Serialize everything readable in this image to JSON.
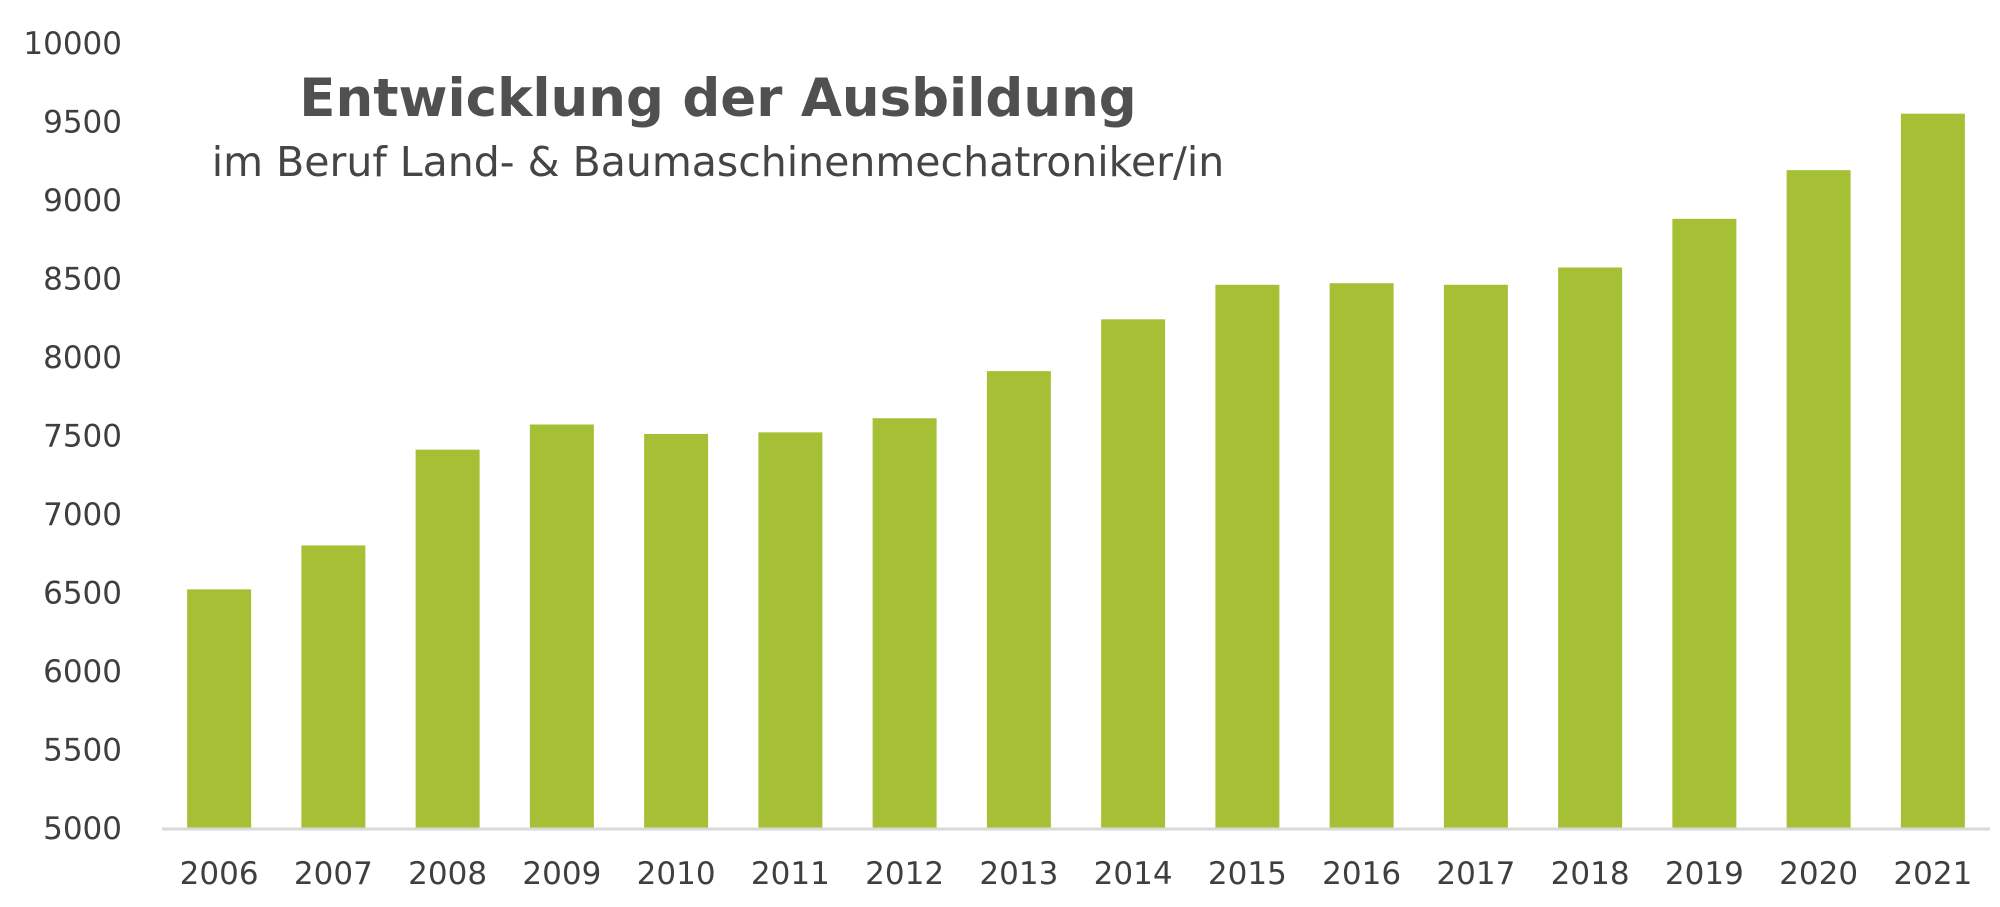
{
  "chart_data": {
    "type": "bar",
    "title": "Entwicklung der Ausbildung",
    "subtitle": "im Beruf Land- & Baumaschinenmechatroniker/in",
    "xlabel": "",
    "ylabel": "",
    "categories": [
      "2006",
      "2007",
      "2008",
      "2009",
      "2010",
      "2011",
      "2012",
      "2013",
      "2014",
      "2015",
      "2016",
      "2017",
      "2018",
      "2019",
      "2020",
      "2021"
    ],
    "values": [
      6520,
      6800,
      7410,
      7570,
      7510,
      7520,
      7610,
      7910,
      8240,
      8460,
      8470,
      8460,
      8570,
      8880,
      9190,
      9550
    ],
    "ylim": [
      5000,
      10000
    ],
    "yticks": [
      "5000",
      "5500",
      "6000",
      "6500",
      "7000",
      "7500",
      "8000",
      "8500",
      "9000",
      "9500",
      "10000"
    ],
    "grid": false,
    "legend": "none",
    "colors": {
      "bar": "#a5c034",
      "axis": "#d9d9d9",
      "text": "#3f3f3f",
      "title": "#505050"
    }
  }
}
